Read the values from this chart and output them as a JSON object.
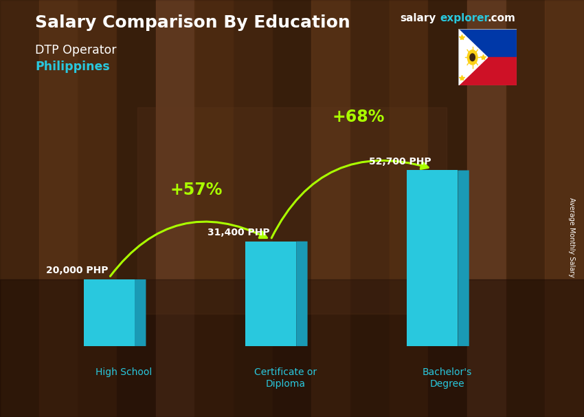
{
  "title_main": "Salary Comparison By Education",
  "subtitle1": "DTP Operator",
  "subtitle2": "Philippines",
  "categories": [
    "High School",
    "Certificate or\nDiploma",
    "Bachelor's\nDegree"
  ],
  "values": [
    20000,
    31400,
    52700
  ],
  "value_labels": [
    "20,000 PHP",
    "31,400 PHP",
    "52,700 PHP"
  ],
  "bar_face_color": "#29c8de",
  "bar_top_color": "#6ee8f5",
  "bar_side_color": "#1a9ab5",
  "pct_labels": [
    "+57%",
    "+68%"
  ],
  "ylabel_right": "Average Monthly Salary",
  "bg_dark_color": "#3d2510",
  "bg_light_color": "#6b4020",
  "title_color": "#ffffff",
  "subtitle1_color": "#ffffff",
  "subtitle2_color": "#29c8de",
  "value_label_color": "#ffffff",
  "pct_color": "#aaff00",
  "xlabel_color": "#29c8de",
  "brand_color_salary": "#ffffff",
  "brand_color_explorer": "#29c8de",
  "brand_color_com": "#ffffff",
  "ylim": [
    0,
    65000
  ],
  "bar_width": 0.38,
  "x_positions": [
    0.55,
    1.75,
    2.95
  ]
}
